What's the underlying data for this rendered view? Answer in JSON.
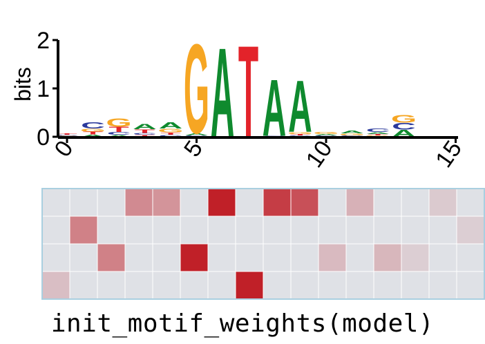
{
  "chart_data": [
    {
      "type": "sequence-logo",
      "ylabel": "bits",
      "ylim": [
        0,
        2
      ],
      "yticks": [
        "0",
        "1",
        "2"
      ],
      "xticks": [
        "0",
        "5",
        "10",
        "15"
      ],
      "xrange": [
        0,
        15
      ],
      "colors": {
        "A": "#0f8a2e",
        "C": "#2b3a9c",
        "G": "#f6a623",
        "T": "#e3232a"
      },
      "positions": [
        [
          {
            "b": "G",
            "h": 0.02
          },
          {
            "b": "C",
            "h": 0.02
          },
          {
            "b": "T",
            "h": 0.03
          }
        ],
        [
          {
            "b": "A",
            "h": 0.05
          },
          {
            "b": "T",
            "h": 0.06
          },
          {
            "b": "G",
            "h": 0.06
          },
          {
            "b": "C",
            "h": 0.13
          }
        ],
        [
          {
            "b": "A",
            "h": 0.04
          },
          {
            "b": "C",
            "h": 0.06
          },
          {
            "b": "T",
            "h": 0.11
          },
          {
            "b": "G",
            "h": 0.18
          }
        ],
        [
          {
            "b": "T",
            "h": 0.04
          },
          {
            "b": "C",
            "h": 0.04
          },
          {
            "b": "T",
            "h": 0.08
          },
          {
            "b": "A",
            "h": 0.11
          }
        ],
        [
          {
            "b": "C",
            "h": 0.04
          },
          {
            "b": "T",
            "h": 0.05
          },
          {
            "b": "G",
            "h": 0.08
          },
          {
            "b": "A",
            "h": 0.13
          }
        ],
        [
          {
            "b": "C",
            "h": 0.03
          },
          {
            "b": "A",
            "h": 0.05
          },
          {
            "b": "G",
            "h": 1.9
          }
        ],
        [
          {
            "b": "A",
            "h": 1.9
          }
        ],
        [
          {
            "b": "T",
            "h": 1.95
          }
        ],
        [
          {
            "b": "C",
            "h": 0.02
          },
          {
            "b": "A",
            "h": 1.2
          }
        ],
        [
          {
            "b": "C",
            "h": 0.03
          },
          {
            "b": "T",
            "h": 0.03
          },
          {
            "b": "G",
            "h": 0.04
          },
          {
            "b": "A",
            "h": 1.1
          }
        ],
        [
          {
            "b": "C",
            "h": 0.03
          },
          {
            "b": "A",
            "h": 0.03
          },
          {
            "b": "G",
            "h": 0.05
          }
        ],
        [
          {
            "b": "C",
            "h": 0.03
          },
          {
            "b": "G",
            "h": 0.04
          },
          {
            "b": "A",
            "h": 0.06
          }
        ],
        [
          {
            "b": "G",
            "h": 0.03
          },
          {
            "b": "T",
            "h": 0.03
          },
          {
            "b": "A",
            "h": 0.04
          },
          {
            "b": "C",
            "h": 0.08
          }
        ],
        [
          {
            "b": "A",
            "h": 0.15
          },
          {
            "b": "C",
            "h": 0.14
          },
          {
            "b": "G",
            "h": 0.16
          }
        ],
        [],
        [],
        []
      ]
    },
    {
      "type": "heatmap",
      "rows": 4,
      "cols": 16,
      "values": [
        [
          0,
          0,
          0,
          0.45,
          0.4,
          0,
          1.0,
          0,
          0.85,
          0.75,
          0,
          0.25,
          0,
          0,
          0.12,
          0
        ],
        [
          0,
          0.5,
          0,
          0,
          0,
          0,
          0,
          0,
          0,
          0,
          0,
          0,
          0,
          0,
          0,
          0.1
        ],
        [
          0,
          0,
          0.5,
          0,
          0,
          1.0,
          0,
          0,
          0,
          0,
          0.2,
          0,
          0.22,
          0.1,
          0,
          0
        ],
        [
          0.18,
          0,
          0,
          0,
          0,
          0,
          0,
          1.0,
          0,
          0,
          0,
          0,
          0,
          0,
          0,
          0
        ]
      ],
      "color_low": "#dfe1e6",
      "color_high": "#c02028",
      "border_color": "#a9cfe0"
    }
  ],
  "caption": "init_motif_weights(model)"
}
